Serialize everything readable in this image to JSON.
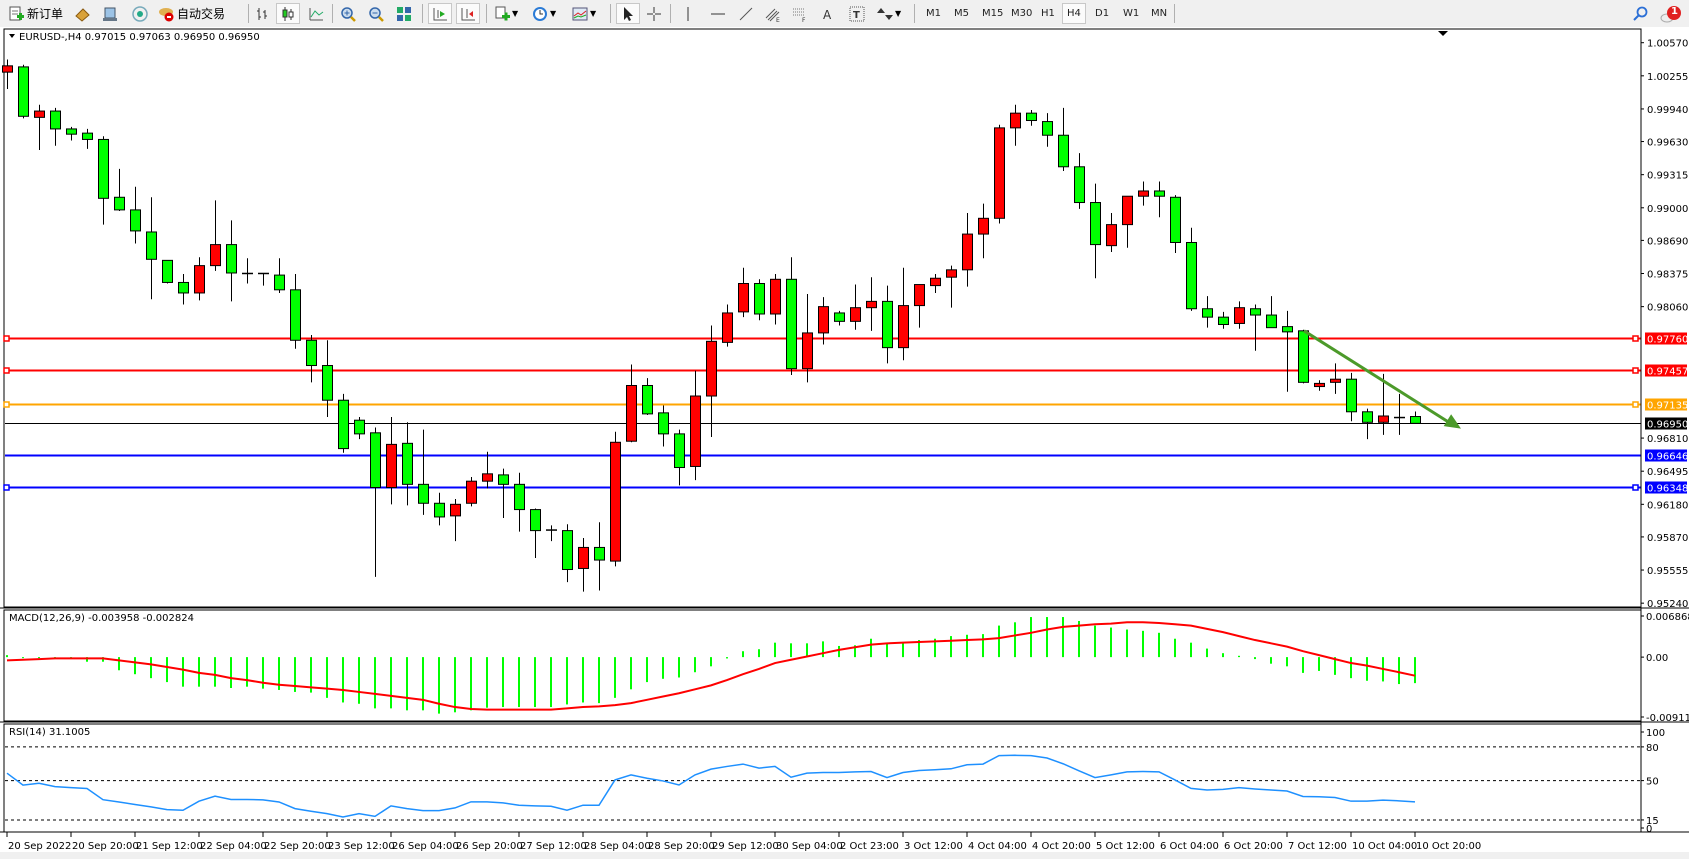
{
  "toolbar": {
    "new_order_label": "新订单",
    "autotrade_label": "自动交易",
    "timeframes": [
      "M1",
      "M5",
      "M15",
      "M30",
      "H1",
      "H4",
      "D1",
      "W1",
      "MN"
    ],
    "active_timeframe": "H4",
    "notification_count": "1",
    "icons": [
      "new-order-icon",
      "market-watch-icon",
      "data-window-icon",
      "navigator-icon",
      "autotrade-icon",
      "bar-chart-icon",
      "candlestick-icon",
      "line-chart-icon",
      "zoom-in-icon",
      "zoom-out-icon",
      "tile-windows-icon",
      "autoscroll-icon",
      "chart-shift-icon",
      "new-chart-icon",
      "periods-icon",
      "indicators-icon",
      "cursor-icon",
      "crosshair-icon",
      "vertical-line-icon",
      "horizontal-line-icon",
      "trendline-icon",
      "fibo-channel-icon",
      "fibo-fan-icon",
      "text-icon",
      "text-label-icon",
      "arrows-icon",
      "search-icon",
      "chat-icon"
    ]
  },
  "chart_header": "EURUSD-,H4  0.97015 0.97063 0.96950 0.96950",
  "macd_header": "MACD(12,26,9) -0.003958 -0.002824",
  "rsi_header": "RSI(14) 31.1005",
  "colors": {
    "up": "#ff0000",
    "down": "#00ff00",
    "macd_hist": "#00ff00",
    "macd_signal": "#ff0000",
    "rsi": "#1e90ff",
    "arrow": "#4c9a2a"
  },
  "chart_data": [
    {
      "type": "candlestick",
      "symbol": "EURUSD-",
      "timeframe": "H4",
      "ylim": [
        0.952,
        1.0069
      ],
      "price_ticks": [
        "1.00570",
        "1.00255",
        "0.99940",
        "0.99630",
        "0.99315",
        "0.99000",
        "0.98690",
        "0.98375",
        "0.98060",
        "0.96810",
        "0.96495",
        "0.96180",
        "0.95870",
        "0.95555",
        "0.95240"
      ],
      "levels": [
        {
          "price": "0.97760",
          "color": "#ff0000"
        },
        {
          "price": "0.97457",
          "color": "#ff0000"
        },
        {
          "price": "0.97135",
          "color": "#ffa500"
        },
        {
          "price": "0.96950",
          "color": "#000000"
        },
        {
          "price": "0.96646",
          "color": "#0000ff"
        },
        {
          "price": "0.96348",
          "color": "#0000ff"
        }
      ],
      "trend_arrow": {
        "from": {
          "bar": 81,
          "price": 0.9783
        },
        "to": {
          "bar": 91,
          "price": 0.969
        },
        "direction": "down"
      },
      "time_labels": [
        "20 Sep 2022",
        "20 Sep 20:00",
        "21 Sep 12:00",
        "22 Sep 04:00",
        "22 Sep 20:00",
        "23 Sep 12:00",
        "26 Sep 04:00",
        "26 Sep 20:00",
        "27 Sep 12:00",
        "28 Sep 04:00",
        "28 Sep 20:00",
        "29 Sep 12:00",
        "30 Sep 04:00",
        "2 Oct 23:00",
        "3 Oct 12:00",
        "4 Oct 04:00",
        "4 Oct 20:00",
        "5 Oct 12:00",
        "6 Oct 04:00",
        "6 Oct 20:00",
        "7 Oct 12:00",
        "10 Oct 04:00",
        "10 Oct 20:00"
      ],
      "ohlc": [
        [
          1.0029,
          1.0041,
          1.0013,
          1.0035
        ],
        [
          1.0034,
          1.0036,
          0.9985,
          0.9987
        ],
        [
          0.9986,
          0.9998,
          0.9955,
          0.9992
        ],
        [
          0.9992,
          0.9995,
          0.9959,
          0.9975
        ],
        [
          0.9975,
          0.9977,
          0.9964,
          0.997
        ],
        [
          0.9971,
          0.9975,
          0.9956,
          0.9965
        ],
        [
          0.9965,
          0.9968,
          0.9884,
          0.9909
        ],
        [
          0.991,
          0.9937,
          0.9897,
          0.9898
        ],
        [
          0.9898,
          0.992,
          0.9866,
          0.9878
        ],
        [
          0.9877,
          0.991,
          0.9813,
          0.9851
        ],
        [
          0.985,
          0.985,
          0.9828,
          0.9829
        ],
        [
          0.9829,
          0.9837,
          0.9808,
          0.9819
        ],
        [
          0.9819,
          0.9853,
          0.9812,
          0.9845
        ],
        [
          0.9845,
          0.9907,
          0.984,
          0.9865
        ],
        [
          0.9865,
          0.9888,
          0.9811,
          0.9838
        ],
        [
          0.9838,
          0.9852,
          0.9828,
          0.9838
        ],
        [
          0.9838,
          0.9838,
          0.9826,
          0.9838
        ],
        [
          0.9836,
          0.9852,
          0.9819,
          0.9822
        ],
        [
          0.9822,
          0.9837,
          0.9766,
          0.9774
        ],
        [
          0.9774,
          0.9779,
          0.9734,
          0.975
        ],
        [
          0.975,
          0.9774,
          0.9701,
          0.9717
        ],
        [
          0.9717,
          0.9723,
          0.9667,
          0.9671
        ],
        [
          0.9698,
          0.9701,
          0.968,
          0.9685
        ],
        [
          0.9686,
          0.9691,
          0.9549,
          0.9634
        ],
        [
          0.9634,
          0.9701,
          0.9618,
          0.9675
        ],
        [
          0.9676,
          0.9696,
          0.9617,
          0.9637
        ],
        [
          0.9637,
          0.9689,
          0.9608,
          0.9619
        ],
        [
          0.9619,
          0.9629,
          0.9598,
          0.9606
        ],
        [
          0.9607,
          0.9623,
          0.9583,
          0.9618
        ],
        [
          0.9619,
          0.9644,
          0.9616,
          0.964
        ],
        [
          0.964,
          0.9668,
          0.9633,
          0.9647
        ],
        [
          0.9646,
          0.9652,
          0.9605,
          0.9637
        ],
        [
          0.9637,
          0.9648,
          0.9592,
          0.9613
        ],
        [
          0.9613,
          0.9614,
          0.9567,
          0.9593
        ],
        [
          0.9594,
          0.9598,
          0.9583,
          0.9594
        ],
        [
          0.9593,
          0.9599,
          0.9544,
          0.9556
        ],
        [
          0.9557,
          0.9586,
          0.9535,
          0.9577
        ],
        [
          0.9577,
          0.9601,
          0.9536,
          0.9565
        ],
        [
          0.9564,
          0.9687,
          0.9559,
          0.9677
        ],
        [
          0.9678,
          0.9751,
          0.9677,
          0.9731
        ],
        [
          0.9731,
          0.9738,
          0.9703,
          0.9704
        ],
        [
          0.9705,
          0.9712,
          0.9673,
          0.9685
        ],
        [
          0.9685,
          0.9689,
          0.9636,
          0.9653
        ],
        [
          0.9654,
          0.9745,
          0.9641,
          0.9721
        ],
        [
          0.9721,
          0.9788,
          0.9682,
          0.9773
        ],
        [
          0.9772,
          0.9808,
          0.9768,
          0.98
        ],
        [
          0.9801,
          0.9843,
          0.9796,
          0.9828
        ],
        [
          0.9828,
          0.9832,
          0.9793,
          0.9799
        ],
        [
          0.9799,
          0.9837,
          0.9789,
          0.9832
        ],
        [
          0.9832,
          0.9853,
          0.9741,
          0.9747
        ],
        [
          0.9747,
          0.9818,
          0.9734,
          0.9781
        ],
        [
          0.9781,
          0.9815,
          0.977,
          0.9806
        ],
        [
          0.98,
          0.9802,
          0.9788,
          0.9792
        ],
        [
          0.9792,
          0.9827,
          0.9784,
          0.9805
        ],
        [
          0.9805,
          0.9834,
          0.9783,
          0.9811
        ],
        [
          0.9811,
          0.9826,
          0.9752,
          0.9767
        ],
        [
          0.9767,
          0.9843,
          0.9755,
          0.9807
        ],
        [
          0.9807,
          0.9827,
          0.9786,
          0.9827
        ],
        [
          0.9826,
          0.9837,
          0.9819,
          0.9833
        ],
        [
          0.9834,
          0.9845,
          0.9805,
          0.9841
        ],
        [
          0.9841,
          0.9895,
          0.9825,
          0.9875
        ],
        [
          0.9875,
          0.9904,
          0.9852,
          0.989
        ],
        [
          0.989,
          0.9979,
          0.9885,
          0.9976
        ],
        [
          0.9976,
          0.9998,
          0.9959,
          0.999
        ],
        [
          0.999,
          0.9993,
          0.9978,
          0.9983
        ],
        [
          0.9982,
          0.999,
          0.9958,
          0.9969
        ],
        [
          0.9969,
          0.9995,
          0.9935,
          0.9939
        ],
        [
          0.9939,
          0.9952,
          0.9899,
          0.9905
        ],
        [
          0.9905,
          0.9923,
          0.9833,
          0.9865
        ],
        [
          0.9864,
          0.9895,
          0.9858,
          0.9884
        ],
        [
          0.9884,
          0.9911,
          0.9862,
          0.9911
        ],
        [
          0.9911,
          0.9925,
          0.9902,
          0.9916
        ],
        [
          0.9916,
          0.9925,
          0.9891,
          0.9911
        ],
        [
          0.991,
          0.9912,
          0.9857,
          0.9867
        ],
        [
          0.9867,
          0.9881,
          0.9802,
          0.9804
        ],
        [
          0.9804,
          0.9816,
          0.9786,
          0.9796
        ],
        [
          0.9796,
          0.9801,
          0.9785,
          0.9789
        ],
        [
          0.979,
          0.9811,
          0.9785,
          0.9805
        ],
        [
          0.9804,
          0.9808,
          0.9764,
          0.9798
        ],
        [
          0.9798,
          0.9816,
          0.9786,
          0.9786
        ],
        [
          0.9787,
          0.9802,
          0.9725,
          0.9782
        ],
        [
          0.9783,
          0.9784,
          0.9733,
          0.9734
        ],
        [
          0.973,
          0.9736,
          0.9726,
          0.9733
        ],
        [
          0.9734,
          0.9752,
          0.9723,
          0.9737
        ],
        [
          0.9737,
          0.9743,
          0.9697,
          0.9706
        ],
        [
          0.9706,
          0.9709,
          0.968,
          0.9696
        ],
        [
          0.9696,
          0.9742,
          0.9684,
          0.9702
        ],
        [
          0.9701,
          0.9723,
          0.9684,
          0.9701
        ],
        [
          0.97015,
          0.97063,
          0.9695,
          0.9695
        ]
      ]
    },
    {
      "type": "bar+line",
      "indicator": "MACD(12,26,9)",
      "ylim": [
        -0.009114,
        0.006868
      ],
      "ticks": [
        "0.006868",
        "0.00",
        "-0.009114"
      ],
      "histogram": [
        0.0003,
        0,
        0,
        0,
        -0.0001,
        -0.0007,
        -0.0007,
        -0.002,
        -0.0026,
        -0.0032,
        -0.0038,
        -0.0045,
        -0.0045,
        -0.0045,
        -0.0047,
        -0.0045,
        -0.0048,
        -0.005,
        -0.0053,
        -0.0054,
        -0.0062,
        -0.0069,
        -0.0071,
        -0.0078,
        -0.0078,
        -0.0081,
        -0.0081,
        -0.0086,
        -0.0084,
        -0.0081,
        -0.0077,
        -0.0076,
        -0.0076,
        -0.0076,
        -0.0076,
        -0.0072,
        -0.0069,
        -0.007,
        -0.0062,
        -0.0049,
        -0.0038,
        -0.0033,
        -0.0031,
        -0.0023,
        -0.0014,
        -0.0002,
        0.0009,
        0.0012,
        0.0022,
        0.0021,
        0.0021,
        0.0024,
        0.0017,
        0.0018,
        0.0028,
        0.0022,
        0.0022,
        0.0026,
        0.0028,
        0.0032,
        0.0034,
        0.0035,
        0.0048,
        0.0053,
        0.0061,
        0.0061,
        0.0061,
        0.0055,
        0.0048,
        0.0045,
        0.0042,
        0.004,
        0.0037,
        0.0028,
        0.0022,
        0.0013,
        0.0006,
        0.0002,
        -0.0003,
        -0.001,
        -0.0014,
        -0.0024,
        -0.0021,
        -0.0027,
        -0.0032,
        -0.0036,
        -0.0037,
        -0.0041,
        -0.003958
      ],
      "signal": [
        -0.0005,
        -0.0004,
        -0.0003,
        -0.0002,
        -0.0002,
        -0.0002,
        -0.0002,
        -0.0005,
        -0.0008,
        -0.0011,
        -0.0015,
        -0.0019,
        -0.0024,
        -0.0027,
        -0.0032,
        -0.0035,
        -0.0039,
        -0.0042,
        -0.0044,
        -0.0046,
        -0.0048,
        -0.005,
        -0.0053,
        -0.0056,
        -0.0059,
        -0.0062,
        -0.0065,
        -0.0071,
        -0.0076,
        -0.0079,
        -0.008,
        -0.008,
        -0.008,
        -0.008,
        -0.008,
        -0.0078,
        -0.0076,
        -0.0075,
        -0.0073,
        -0.007,
        -0.0065,
        -0.006,
        -0.0055,
        -0.0049,
        -0.0043,
        -0.0035,
        -0.0026,
        -0.0018,
        -0.0009,
        -0.0004,
        0.0001,
        0.0006,
        0.0011,
        0.0015,
        0.0019,
        0.0021,
        0.0022,
        0.0023,
        0.0024,
        0.0025,
        0.0026,
        0.0027,
        0.0029,
        0.0033,
        0.0037,
        0.0042,
        0.0046,
        0.0048,
        0.005,
        0.0051,
        0.0053,
        0.0053,
        0.0052,
        0.005,
        0.0048,
        0.0043,
        0.0038,
        0.0032,
        0.0026,
        0.0021,
        0.0016,
        0.0009,
        0.0003,
        -0.0003,
        -0.0009,
        -0.0013,
        -0.0018,
        -0.0023,
        -0.002824
      ]
    },
    {
      "type": "line",
      "indicator": "RSI(14)",
      "ylim": [
        0,
        100
      ],
      "ticks": [
        "100",
        "80",
        "50",
        "15",
        "0"
      ],
      "levels": [
        80,
        50,
        15
      ],
      "values": [
        56.6,
        46,
        47.6,
        44.6,
        43.7,
        43,
        33,
        31,
        28.7,
        26.6,
        24.2,
        23.6,
        31.7,
        36.2,
        33.2,
        33.2,
        32.9,
        31,
        25.1,
        22.7,
        20.6,
        17.6,
        20.6,
        18.2,
        27.5,
        25.1,
        23.3,
        23.3,
        25.7,
        31.1,
        31.1,
        30.2,
        28.1,
        27.5,
        27.2,
        23.6,
        28.1,
        28.1,
        50.6,
        55.1,
        52.1,
        49.7,
        46.1,
        55.1,
        60.2,
        62.6,
        64.7,
        61.1,
        62.6,
        53,
        56.6,
        57.2,
        57.2,
        57.8,
        58.1,
        52.7,
        57.2,
        59,
        59.6,
        60.5,
        64.1,
        64.7,
        72.2,
        72.5,
        72.2,
        70.1,
        65,
        58.7,
        52.7,
        55.1,
        57.8,
        58.1,
        57.8,
        50.6,
        43.1,
        41.6,
        42.2,
        43.7,
        42.5,
        41.6,
        40.7,
        35.9,
        35.6,
        35,
        31.7,
        31.7,
        32.6,
        32,
        31.1005
      ]
    }
  ]
}
